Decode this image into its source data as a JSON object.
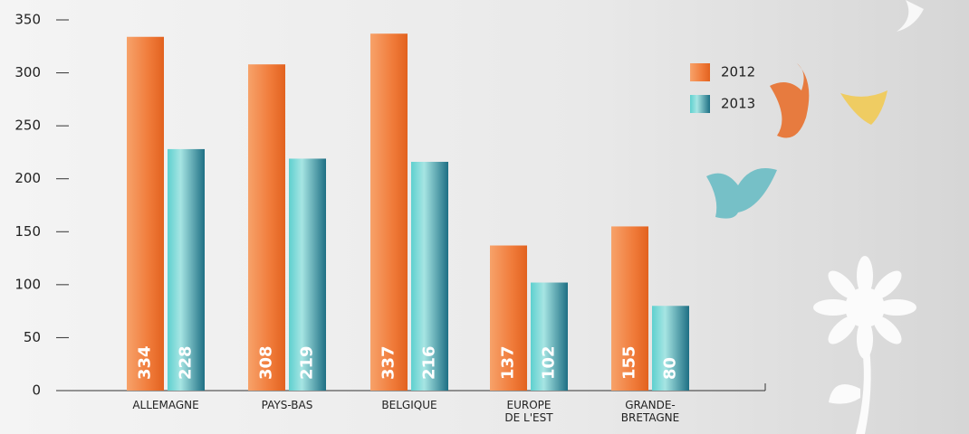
{
  "chart_data": {
    "type": "bar",
    "categories": [
      "ALLEMAGNE",
      "PAYS-BAS",
      "BELGIQUE",
      "EUROPE\nDE L'EST",
      "GRANDE-\nBRETAGNE"
    ],
    "series": [
      {
        "name": "2012",
        "color": "#f07b3a",
        "values": [
          334,
          308,
          337,
          137,
          155
        ]
      },
      {
        "name": "2013",
        "color": "#2fb5b8",
        "values": [
          228,
          219,
          216,
          102,
          80
        ]
      }
    ],
    "ylim": [
      0,
      350
    ],
    "yticks": [
      0,
      50,
      100,
      150,
      200,
      250,
      300,
      350
    ],
    "legend": "top-right"
  }
}
